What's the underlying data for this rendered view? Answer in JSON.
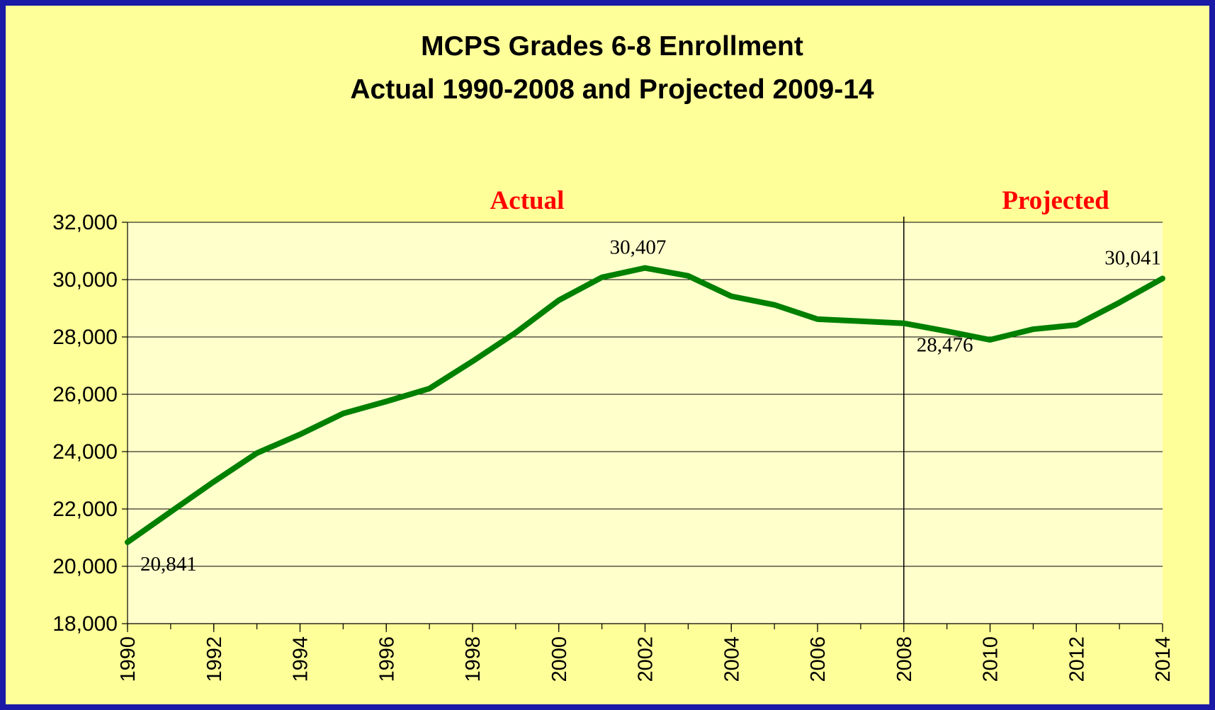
{
  "chart_data": {
    "type": "line",
    "title": "MCPS Grades 6-8 Enrollment",
    "subtitle": "Actual 1990-2008 and Projected 2009-14",
    "annotations": {
      "actual": "Actual",
      "projected": "Projected"
    },
    "divider": 2008,
    "x": [
      1990,
      1991,
      1992,
      1993,
      1994,
      1995,
      1996,
      1997,
      1998,
      1999,
      2000,
      2001,
      2002,
      2003,
      2004,
      2005,
      2006,
      2007,
      2008,
      2009,
      2010,
      2011,
      2012,
      2013,
      2014
    ],
    "series": [
      {
        "color": "#008000",
        "values": [
          20841,
          21900,
          22950,
          23950,
          24600,
          25330,
          25750,
          26200,
          27150,
          28150,
          29280,
          30080,
          30407,
          30130,
          29420,
          29120,
          28620,
          28550,
          28476,
          28200,
          27900,
          28270,
          28420,
          29200,
          30041
        ],
        "value_labels": [
          "20,841",
          null,
          null,
          null,
          null,
          null,
          null,
          null,
          null,
          null,
          null,
          null,
          "30,407",
          null,
          null,
          null,
          null,
          null,
          "28,476",
          null,
          null,
          null,
          null,
          null,
          "30,041"
        ]
      }
    ],
    "xlim": [
      1990,
      2014
    ],
    "xticks": [
      1990,
      1992,
      1994,
      1996,
      1998,
      2000,
      2002,
      2004,
      2006,
      2008,
      2010,
      2012,
      2014
    ],
    "ylim": [
      18000,
      32000
    ],
    "yticks": [
      {
        "value": 18000,
        "label": "18,000"
      },
      {
        "value": 20000,
        "label": "20,000"
      },
      {
        "value": 22000,
        "label": "22,000"
      },
      {
        "value": 24000,
        "label": "24,000"
      },
      {
        "value": 26000,
        "label": "26,000"
      },
      {
        "value": 28000,
        "label": "28,000"
      },
      {
        "value": 30000,
        "label": "30,000"
      },
      {
        "value": 32000,
        "label": "32,000"
      }
    ],
    "grid": true
  }
}
